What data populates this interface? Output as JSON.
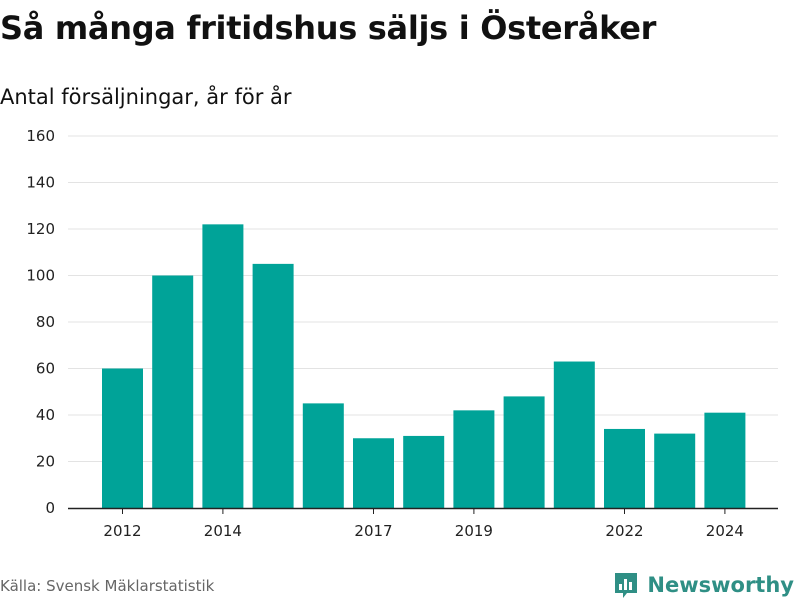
{
  "header": {
    "title": "Så många fritidshus säljs i Österåker",
    "subtitle": "Antal försäljningar, år för år"
  },
  "footer": {
    "source": "Källa: Svensk Mäklarstatistik",
    "brand": "Newsworthy",
    "brand_icon": "bar-chart-logo-icon"
  },
  "colors": {
    "bar": "#00a398",
    "grid": "#e3e3e3",
    "axis": "#222222",
    "brand": "#2f8f85"
  },
  "chart_data": {
    "type": "bar",
    "categories": [
      "2012",
      "2013",
      "2014",
      "2015",
      "2016",
      "2017",
      "2018",
      "2019",
      "2020",
      "2021",
      "2022",
      "2023",
      "2024"
    ],
    "values": [
      60,
      100,
      122,
      105,
      45,
      30,
      31,
      42,
      48,
      63,
      34,
      32,
      41
    ],
    "title": "Så många fritidshus säljs i Österåker",
    "subtitle": "Antal försäljningar, år för år",
    "xlabel": "",
    "ylabel": "",
    "ylim": [
      0,
      160
    ],
    "yticks": [
      0,
      20,
      40,
      60,
      80,
      100,
      120,
      140,
      160
    ],
    "xtick_labels": [
      "2012",
      "2014",
      "2017",
      "2019",
      "2022",
      "2024"
    ],
    "grid": true,
    "legend": "none"
  }
}
